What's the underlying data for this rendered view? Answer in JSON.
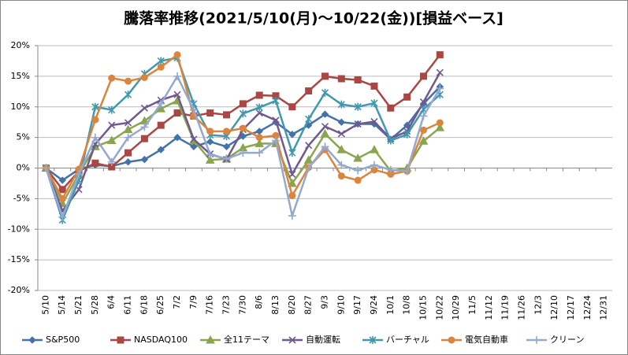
{
  "chart_data": {
    "type": "line",
    "title": "騰落率推移(2021/5/10(月)～10/22(金))[損益ベース]",
    "categories": [
      "5/10",
      "5/14",
      "5/21",
      "5/28",
      "6/4",
      "6/11",
      "6/18",
      "6/25",
      "7/2",
      "7/9",
      "7/16",
      "7/23",
      "7/30",
      "8/6",
      "8/13",
      "8/20",
      "8/27",
      "9/3",
      "9/10",
      "9/17",
      "9/24",
      "10/1",
      "10/8",
      "10/15",
      "10/22",
      "10/29",
      "11/5",
      "11/12",
      "11/19",
      "11/26",
      "12/3",
      "12/10",
      "12/17",
      "12/24",
      "12/31"
    ],
    "series": [
      {
        "name": "S&P500",
        "color": "#4572a7",
        "marker": "diamond",
        "values": [
          0,
          -2.0,
          -0.2,
          0.5,
          0.3,
          1.0,
          1.4,
          3.0,
          5.0,
          3.5,
          4.3,
          3.5,
          5.2,
          6.0,
          7.5,
          5.5,
          7.0,
          8.8,
          7.5,
          7.2,
          7.2,
          4.7,
          7.0,
          10.5,
          13.3,
          null,
          null,
          null,
          null,
          null,
          null,
          null,
          null,
          null,
          null
        ]
      },
      {
        "name": "NASDAQ100",
        "color": "#aa4643",
        "marker": "square",
        "values": [
          0,
          -3.5,
          -0.5,
          0.8,
          0.2,
          2.5,
          4.8,
          7.0,
          9.0,
          8.5,
          9.0,
          8.7,
          10.5,
          11.9,
          11.8,
          10.0,
          12.6,
          15.0,
          14.6,
          14.4,
          13.4,
          9.8,
          11.6,
          15.0,
          18.5,
          null,
          null,
          null,
          null,
          null,
          null,
          null,
          null,
          null,
          null
        ]
      },
      {
        "name": "全11テーマ",
        "color": "#89a54e",
        "marker": "triangle",
        "values": [
          0,
          -5.8,
          -1.0,
          3.5,
          4.5,
          6.3,
          7.7,
          9.7,
          11.0,
          4.5,
          1.3,
          1.5,
          3.3,
          4.0,
          4.0,
          -2.5,
          1.3,
          5.6,
          3.0,
          1.6,
          3.0,
          -0.5,
          0.0,
          4.4,
          6.6,
          null,
          null,
          null,
          null,
          null,
          null,
          null,
          null,
          null,
          null
        ]
      },
      {
        "name": "自動運転",
        "color": "#71588f",
        "marker": "x",
        "values": [
          0,
          -7.0,
          -3.5,
          3.9,
          7.0,
          7.4,
          9.8,
          11.1,
          12.0,
          4.7,
          2.3,
          1.4,
          6.3,
          9.0,
          7.8,
          -1.0,
          3.7,
          6.8,
          5.6,
          7.2,
          7.6,
          4.8,
          6.0,
          10.8,
          15.6,
          null,
          null,
          null,
          null,
          null,
          null,
          null,
          null,
          null,
          null
        ]
      },
      {
        "name": "バーチャル",
        "color": "#4198af",
        "marker": "star",
        "values": [
          0,
          -8.5,
          -2.0,
          10.0,
          9.5,
          12.0,
          15.4,
          17.5,
          18.0,
          10.5,
          5.4,
          5.2,
          8.9,
          9.9,
          11.0,
          2.5,
          8.0,
          12.3,
          10.4,
          10.0,
          10.6,
          4.5,
          5.5,
          9.6,
          12.0,
          null,
          null,
          null,
          null,
          null,
          null,
          null,
          null,
          null,
          null
        ]
      },
      {
        "name": "電気自動車",
        "color": "#db843d",
        "marker": "circle",
        "values": [
          0,
          -5.0,
          -0.2,
          7.9,
          14.7,
          14.2,
          14.8,
          16.5,
          18.5,
          8.5,
          6.0,
          6.0,
          6.5,
          5.0,
          5.3,
          -4.5,
          0.1,
          3.0,
          -1.3,
          -2.0,
          -0.3,
          -1.0,
          -0.5,
          6.2,
          7.4,
          null,
          null,
          null,
          null,
          null,
          null,
          null,
          null,
          null,
          null
        ]
      },
      {
        "name": "クリーン",
        "color": "#93a9cf",
        "marker": "plus",
        "values": [
          0,
          -8.0,
          -1.0,
          5.0,
          1.0,
          5.0,
          6.7,
          10.5,
          15.0,
          9.5,
          2.2,
          1.5,
          2.5,
          2.5,
          4.5,
          -7.8,
          0.0,
          3.5,
          0.5,
          -0.4,
          0.5,
          -0.3,
          -0.5,
          8.5,
          13.0,
          null,
          null,
          null,
          null,
          null,
          null,
          null,
          null,
          null,
          null
        ]
      }
    ],
    "ylim": [
      -20,
      20
    ],
    "yticks": [
      {
        "value": -20,
        "label": "-20%"
      },
      {
        "value": -15,
        "label": "-15%"
      },
      {
        "value": -10,
        "label": "-10%"
      },
      {
        "value": -5,
        "label": "-5%"
      },
      {
        "value": 0,
        "label": "0%"
      },
      {
        "value": 5,
        "label": "5%"
      },
      {
        "value": 10,
        "label": "10%"
      },
      {
        "value": 15,
        "label": "15%"
      },
      {
        "value": 20,
        "label": "20%"
      }
    ],
    "grid": true,
    "legend": "bottom"
  }
}
